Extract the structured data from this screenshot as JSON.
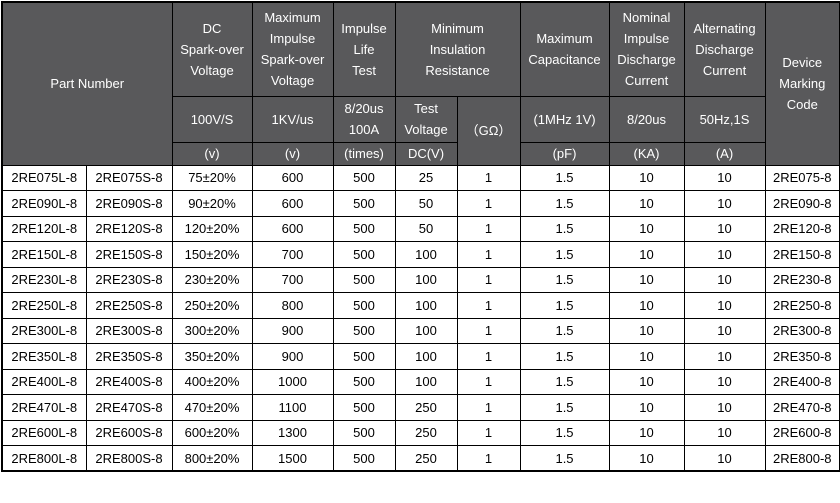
{
  "table": {
    "header": {
      "part_number": "Part Number",
      "dc_sparkover": {
        "title": "DC\nSpark-over\nVoltage",
        "condition": "100V/S",
        "unit": "(v)"
      },
      "impulse_sparkover": {
        "title": "Maximum\nImpulse\nSpark-over\nVoltage",
        "condition": "1KV/us",
        "unit": "(v)"
      },
      "impulse_life": {
        "title": "Impulse\nLife\nTest",
        "condition": "8/20us\n100A",
        "unit": "(times)"
      },
      "insulation": {
        "title": "Minimum\nInsulation\nResistance",
        "test_voltage": "Test\nVoltage",
        "test_voltage_unit": "DC(V)",
        "gohm": "（GΩ）"
      },
      "capacitance": {
        "title": "Maximum\nCapacitance",
        "condition": "(1MHz 1V)",
        "unit": "(pF)"
      },
      "nominal_discharge": {
        "title": "Nominal\nImpulse\nDischarge\nCurrent",
        "condition": "8/20us",
        "unit": "(KA)"
      },
      "alternating_discharge": {
        "title": "Alternating\nDischarge\nCurrent",
        "condition": "50Hz,1S",
        "unit": "(A)"
      },
      "marking_code": {
        "title": "Device\nMarking\nCode"
      }
    },
    "rows": [
      [
        "2RE075L-8",
        "2RE075S-8",
        "75±20%",
        "600",
        "500",
        "25",
        "1",
        "1.5",
        "10",
        "10",
        "2RE075-8"
      ],
      [
        "2RE090L-8",
        "2RE090S-8",
        "90±20%",
        "600",
        "500",
        "50",
        "1",
        "1.5",
        "10",
        "10",
        "2RE090-8"
      ],
      [
        "2RE120L-8",
        "2RE120S-8",
        "120±20%",
        "600",
        "500",
        "50",
        "1",
        "1.5",
        "10",
        "10",
        "2RE120-8"
      ],
      [
        "2RE150L-8",
        "2RE150S-8",
        "150±20%",
        "700",
        "500",
        "100",
        "1",
        "1.5",
        "10",
        "10",
        "2RE150-8"
      ],
      [
        "2RE230L-8",
        "2RE230S-8",
        "230±20%",
        "700",
        "500",
        "100",
        "1",
        "1.5",
        "10",
        "10",
        "2RE230-8"
      ],
      [
        "2RE250L-8",
        "2RE250S-8",
        "250±20%",
        "800",
        "500",
        "100",
        "1",
        "1.5",
        "10",
        "10",
        "2RE250-8"
      ],
      [
        "2RE300L-8",
        "2RE300S-8",
        "300±20%",
        "900",
        "500",
        "100",
        "1",
        "1.5",
        "10",
        "10",
        "2RE300-8"
      ],
      [
        "2RE350L-8",
        "2RE350S-8",
        "350±20%",
        "900",
        "500",
        "100",
        "1",
        "1.5",
        "10",
        "10",
        "2RE350-8"
      ],
      [
        "2RE400L-8",
        "2RE400S-8",
        "400±20%",
        "1000",
        "500",
        "100",
        "1",
        "1.5",
        "10",
        "10",
        "2RE400-8"
      ],
      [
        "2RE470L-8",
        "2RE470S-8",
        "470±20%",
        "1100",
        "500",
        "250",
        "1",
        "1.5",
        "10",
        "10",
        "2RE470-8"
      ],
      [
        "2RE600L-8",
        "2RE600S-8",
        "600±20%",
        "1300",
        "500",
        "250",
        "1",
        "1.5",
        "10",
        "10",
        "2RE600-8"
      ],
      [
        "2RE800L-8",
        "2RE800S-8",
        "800±20%",
        "1500",
        "500",
        "250",
        "1",
        "1.5",
        "10",
        "10",
        "2RE800-8"
      ]
    ],
    "colors": {
      "header_bg": "#59595b",
      "header_text": "#ffffff",
      "body_bg": "#ffffff",
      "body_text": "#000000",
      "border": "#000000"
    }
  }
}
